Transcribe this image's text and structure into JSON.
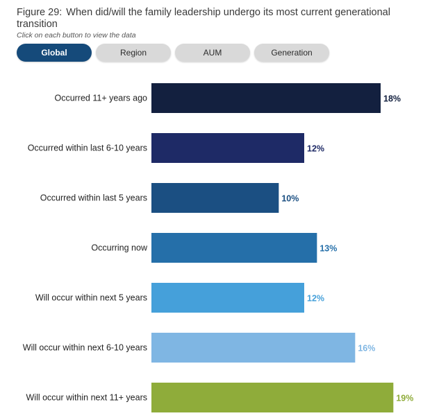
{
  "figure": {
    "number": "Figure 29:",
    "title": "When did/will the family leadership undergo its most current generational transition",
    "subtitle": "Click on each button to view the data"
  },
  "buttons": [
    {
      "label": "Global",
      "active": true
    },
    {
      "label": "Region",
      "active": false
    },
    {
      "label": "AUM",
      "active": false
    },
    {
      "label": "Generation",
      "active": false
    }
  ],
  "chart_data": {
    "type": "bar",
    "orientation": "horizontal",
    "title": "When did/will the family leadership undergo its most current generational transition",
    "xlabel": "",
    "ylabel": "",
    "xlim": [
      0,
      20
    ],
    "grid": false,
    "value_suffix": "%",
    "categories": [
      "Occurred 11+ years ago",
      "Occurred within last 6-10 years",
      "Occurred within last 5 years",
      "Occurring now",
      "Will occur within next 5 years",
      "Will occur within next 6-10 years",
      "Will occur within next 11+ years"
    ],
    "values": [
      18,
      12,
      10,
      13,
      12,
      16,
      19
    ],
    "value_labels": [
      "18%",
      "12%",
      "10%",
      "13%",
      "12%",
      "16%",
      "19%"
    ],
    "bar_colors": [
      "#13203f",
      "#1e2a66",
      "#1b4f82",
      "#256fa9",
      "#45a0da",
      "#7fb6e3",
      "#8fac3a"
    ],
    "label_colors": [
      "#13203f",
      "#1e2a66",
      "#1b4f82",
      "#256fa9",
      "#45a0da",
      "#7fb6e3",
      "#8fac3a"
    ]
  }
}
